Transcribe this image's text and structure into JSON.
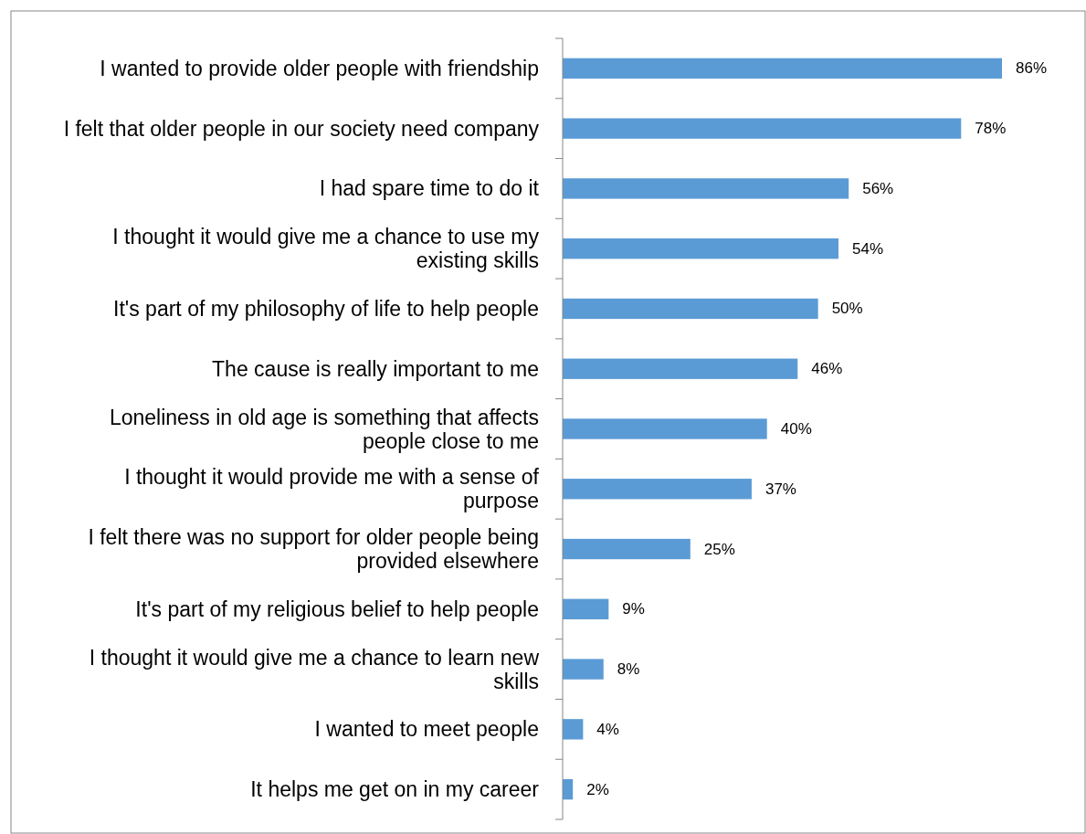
{
  "chart_data": {
    "type": "bar",
    "orientation": "horizontal",
    "categories": [
      "I wanted to provide older people with friendship",
      "I felt that older people in our society need company",
      "I had spare time to do it",
      "I thought it would give me a chance to use my existing skills",
      "It's part of my philosophy of life to help people",
      "The cause is really important to me",
      "Loneliness in old age is something that affects people close to me",
      "I thought it would provide me with a sense of purpose",
      "I felt there was no support for older people being provided elsewhere",
      "It's part of my religious belief to help people",
      "I thought it would give me a chance to learn new skills",
      "I wanted to meet people",
      "It helps me get on in my career"
    ],
    "values": [
      86,
      78,
      56,
      54,
      50,
      46,
      40,
      37,
      25,
      9,
      8,
      4,
      2
    ],
    "value_labels": [
      "86%",
      "78%",
      "56%",
      "54%",
      "50%",
      "46%",
      "40%",
      "37%",
      "25%",
      "9%",
      "8%",
      "4%",
      "2%"
    ],
    "color": "#5b9bd5",
    "tick_labels": "y"
  }
}
